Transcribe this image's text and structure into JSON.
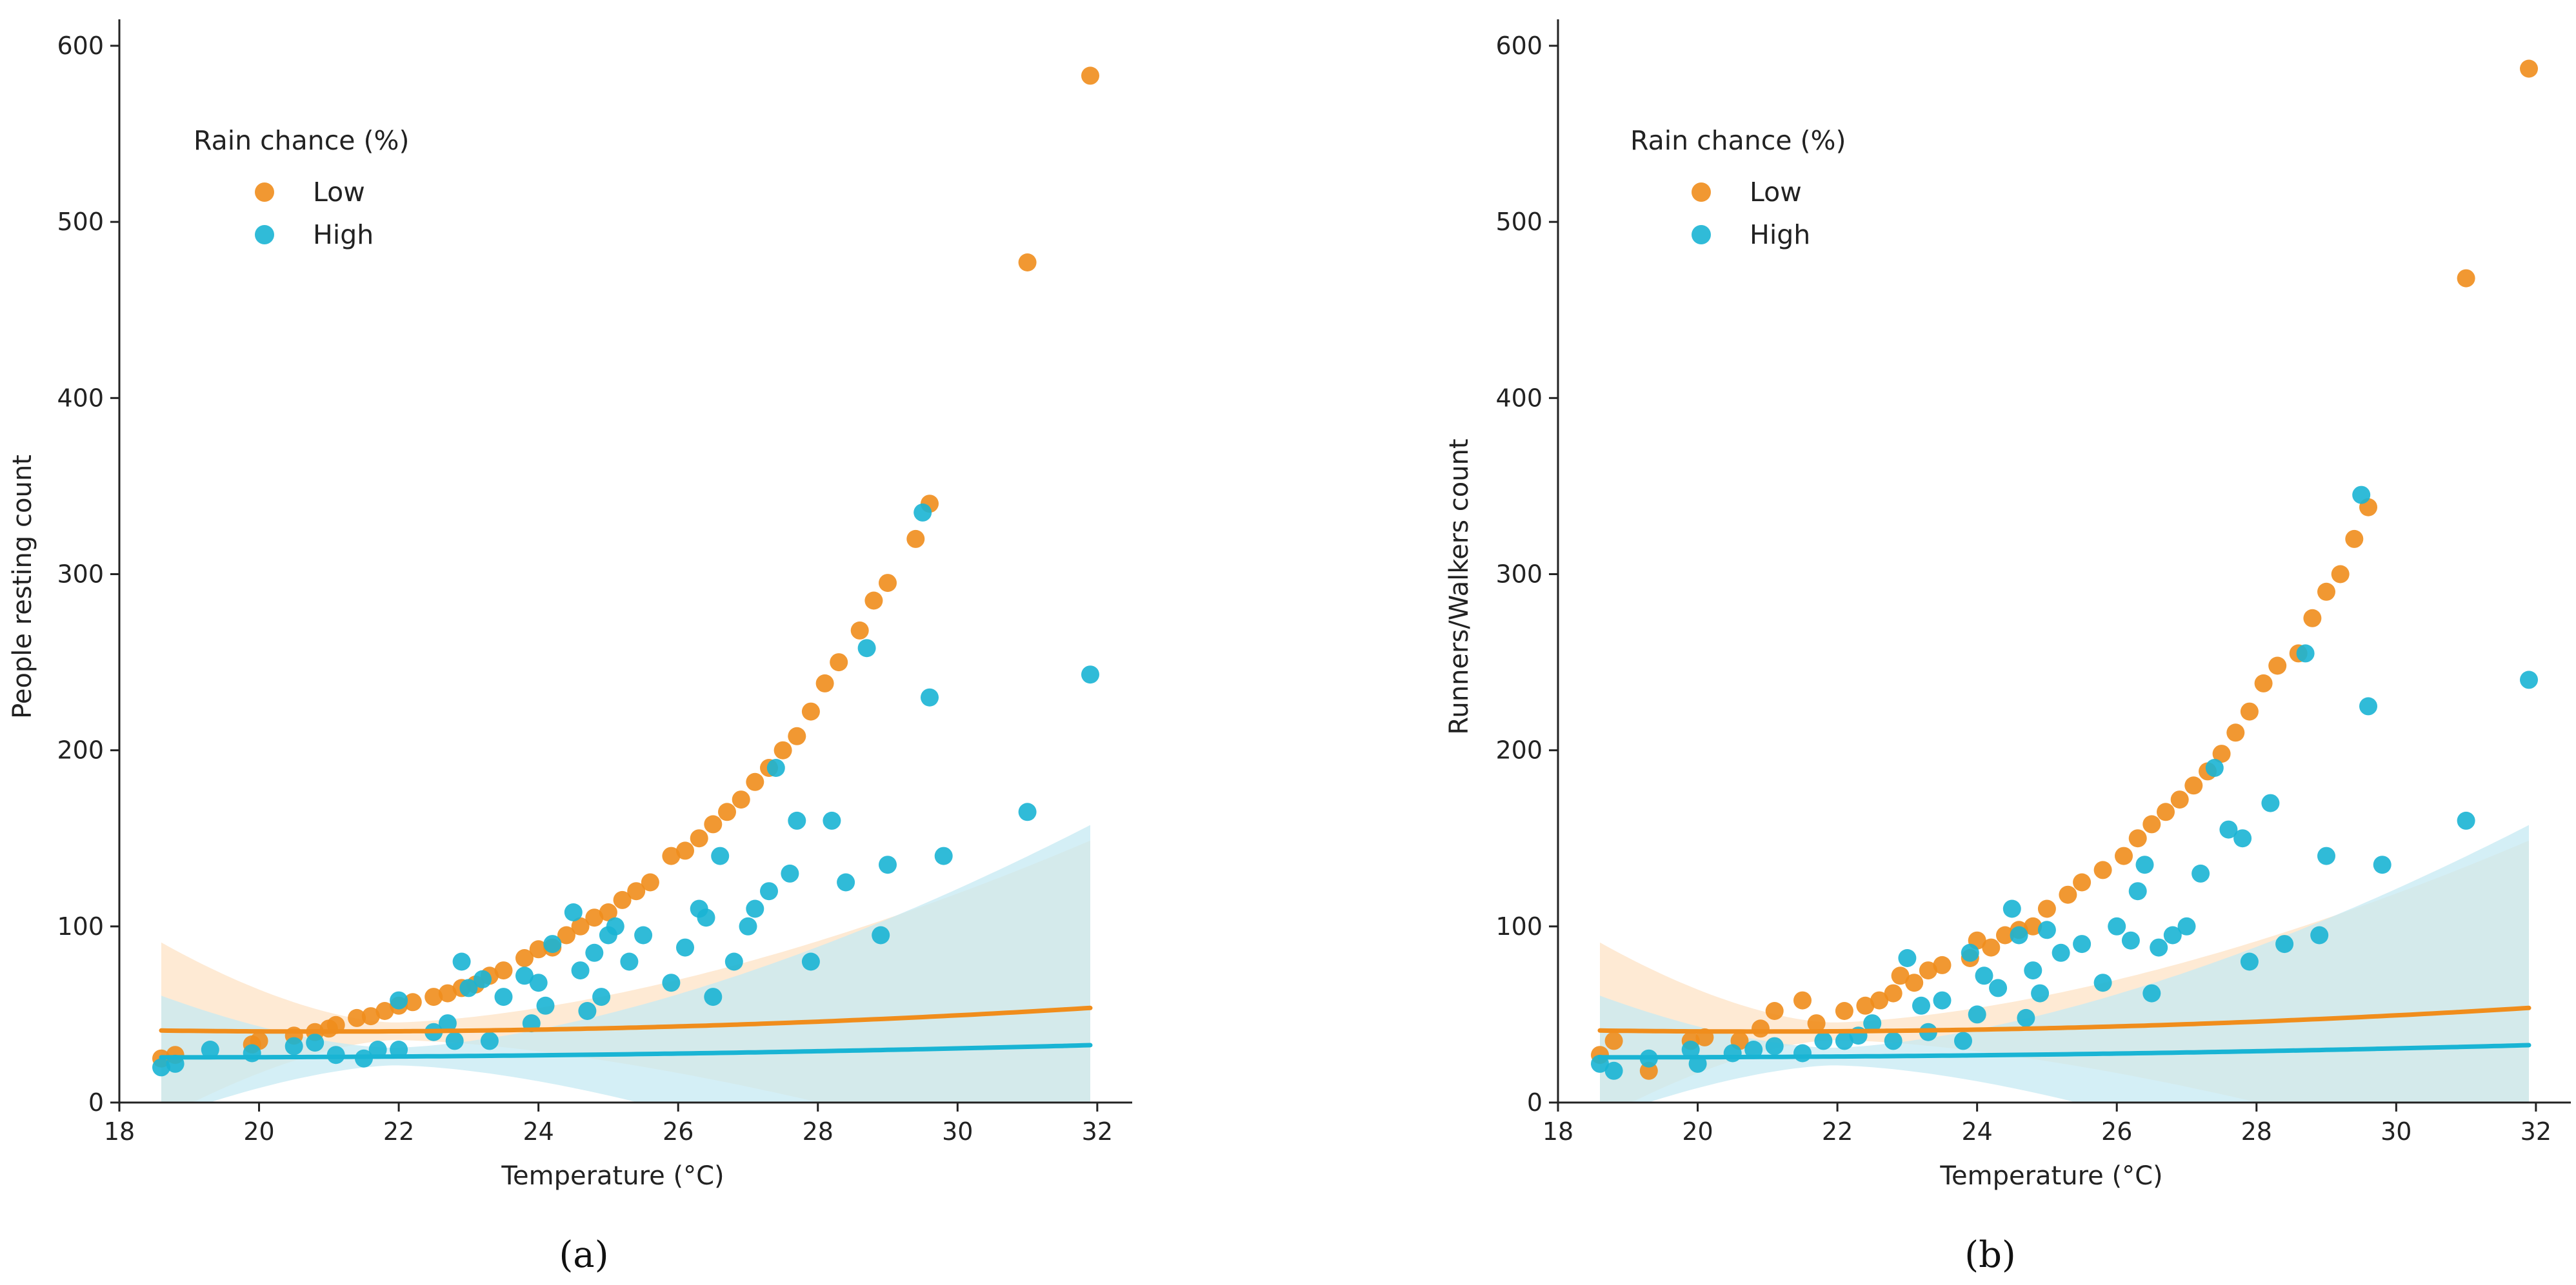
{
  "colors": {
    "low": "#f08d1c",
    "high": "#19b4d4",
    "low_band": "#fde3c6",
    "high_band": "#c6eaf3"
  },
  "chart_data": [
    {
      "type": "scatter",
      "panel_label": "(a)",
      "title": "",
      "xlabel": "Temperature (°C)",
      "ylabel": "People resting count",
      "xlim": [
        18,
        32.5
      ],
      "ylim": [
        0,
        615
      ],
      "xticks": [
        18,
        20,
        22,
        24,
        26,
        28,
        30,
        32
      ],
      "yticks": [
        0,
        100,
        200,
        300,
        400,
        500,
        600
      ],
      "legend": {
        "title": "Rain chance (%)",
        "position": "top-left"
      },
      "series": [
        {
          "name": "Low",
          "color_key": "low",
          "points": [
            [
              18.6,
              25
            ],
            [
              18.8,
              27
            ],
            [
              19.9,
              33
            ],
            [
              20.0,
              35
            ],
            [
              20.5,
              38
            ],
            [
              20.8,
              40
            ],
            [
              21.0,
              42
            ],
            [
              21.1,
              44
            ],
            [
              21.4,
              48
            ],
            [
              21.6,
              49
            ],
            [
              21.8,
              52
            ],
            [
              22.0,
              55
            ],
            [
              22.2,
              57
            ],
            [
              22.5,
              60
            ],
            [
              22.7,
              62
            ],
            [
              22.9,
              65
            ],
            [
              23.1,
              67
            ],
            [
              23.3,
              72
            ],
            [
              23.5,
              75
            ],
            [
              23.8,
              82
            ],
            [
              24.0,
              87
            ],
            [
              24.2,
              88
            ],
            [
              24.4,
              95
            ],
            [
              24.6,
              100
            ],
            [
              24.8,
              105
            ],
            [
              25.0,
              108
            ],
            [
              25.2,
              115
            ],
            [
              25.4,
              120
            ],
            [
              25.6,
              125
            ],
            [
              25.9,
              140
            ],
            [
              26.1,
              143
            ],
            [
              26.3,
              150
            ],
            [
              26.5,
              158
            ],
            [
              26.7,
              165
            ],
            [
              26.9,
              172
            ],
            [
              27.1,
              182
            ],
            [
              27.3,
              190
            ],
            [
              27.5,
              200
            ],
            [
              27.7,
              208
            ],
            [
              27.9,
              222
            ],
            [
              28.1,
              238
            ],
            [
              28.3,
              250
            ],
            [
              28.6,
              268
            ],
            [
              28.8,
              285
            ],
            [
              29.0,
              295
            ],
            [
              29.4,
              320
            ],
            [
              29.6,
              340
            ],
            [
              31.0,
              477
            ],
            [
              31.9,
              583
            ]
          ],
          "fit": {
            "a": 0.11,
            "b": -4.59,
            "c": 88.2
          },
          "ci_start": 45,
          "ci_end": 90
        },
        {
          "name": "High",
          "color_key": "high",
          "points": [
            [
              18.6,
              20
            ],
            [
              18.8,
              22
            ],
            [
              19.3,
              30
            ],
            [
              19.9,
              28
            ],
            [
              20.5,
              32
            ],
            [
              20.8,
              34
            ],
            [
              21.1,
              27
            ],
            [
              21.5,
              25
            ],
            [
              21.7,
              30
            ],
            [
              22.0,
              30
            ],
            [
              22.0,
              58
            ],
            [
              22.5,
              40
            ],
            [
              22.7,
              45
            ],
            [
              22.8,
              35
            ],
            [
              22.9,
              80
            ],
            [
              23.0,
              65
            ],
            [
              23.2,
              70
            ],
            [
              23.3,
              35
            ],
            [
              23.5,
              60
            ],
            [
              23.8,
              72
            ],
            [
              23.9,
              45
            ],
            [
              24.0,
              68
            ],
            [
              24.1,
              55
            ],
            [
              24.2,
              90
            ],
            [
              24.5,
              108
            ],
            [
              24.6,
              75
            ],
            [
              24.7,
              52
            ],
            [
              24.8,
              85
            ],
            [
              24.9,
              60
            ],
            [
              25.0,
              95
            ],
            [
              25.1,
              100
            ],
            [
              25.3,
              80
            ],
            [
              25.5,
              95
            ],
            [
              25.9,
              68
            ],
            [
              26.1,
              88
            ],
            [
              26.3,
              110
            ],
            [
              26.4,
              105
            ],
            [
              26.5,
              60
            ],
            [
              26.6,
              140
            ],
            [
              26.8,
              80
            ],
            [
              27.0,
              100
            ],
            [
              27.1,
              110
            ],
            [
              27.3,
              120
            ],
            [
              27.4,
              190
            ],
            [
              27.6,
              130
            ],
            [
              27.7,
              160
            ],
            [
              27.9,
              80
            ],
            [
              28.2,
              160
            ],
            [
              28.4,
              125
            ],
            [
              28.7,
              258
            ],
            [
              28.9,
              95
            ],
            [
              29.0,
              135
            ],
            [
              29.5,
              335
            ],
            [
              29.6,
              230
            ],
            [
              29.8,
              140
            ],
            [
              31.0,
              165
            ],
            [
              31.9,
              243
            ]
          ],
          "fit": {
            "a": 0.0386,
            "b": -1.43,
            "c": 38.9
          },
          "ci_start": 30,
          "ci_end": 120
        }
      ]
    },
    {
      "type": "scatter",
      "panel_label": "(b)",
      "title": "",
      "xlabel": "Temperature (°C)",
      "ylabel": "Runners/Walkers count",
      "xlim": [
        18,
        32.5
      ],
      "ylim": [
        0,
        615
      ],
      "xticks": [
        18,
        20,
        22,
        24,
        26,
        28,
        30,
        32
      ],
      "yticks": [
        0,
        100,
        200,
        300,
        400,
        500,
        600
      ],
      "legend": {
        "title": "Rain chance (%)",
        "position": "top-left"
      },
      "series": [
        {
          "name": "Low",
          "color_key": "low",
          "points": [
            [
              18.6,
              27
            ],
            [
              18.8,
              35
            ],
            [
              19.3,
              18
            ],
            [
              19.9,
              35
            ],
            [
              20.1,
              37
            ],
            [
              20.6,
              35
            ],
            [
              20.9,
              42
            ],
            [
              21.1,
              52
            ],
            [
              21.5,
              58
            ],
            [
              21.7,
              45
            ],
            [
              22.1,
              52
            ],
            [
              22.4,
              55
            ],
            [
              22.6,
              58
            ],
            [
              22.8,
              62
            ],
            [
              22.9,
              72
            ],
            [
              23.1,
              68
            ],
            [
              23.3,
              75
            ],
            [
              23.5,
              78
            ],
            [
              23.9,
              82
            ],
            [
              24.0,
              92
            ],
            [
              24.2,
              88
            ],
            [
              24.4,
              95
            ],
            [
              24.6,
              98
            ],
            [
              24.8,
              100
            ],
            [
              25.0,
              110
            ],
            [
              25.3,
              118
            ],
            [
              25.5,
              125
            ],
            [
              25.8,
              132
            ],
            [
              26.1,
              140
            ],
            [
              26.3,
              150
            ],
            [
              26.5,
              158
            ],
            [
              26.7,
              165
            ],
            [
              26.9,
              172
            ],
            [
              27.1,
              180
            ],
            [
              27.3,
              188
            ],
            [
              27.5,
              198
            ],
            [
              27.7,
              210
            ],
            [
              27.9,
              222
            ],
            [
              28.1,
              238
            ],
            [
              28.3,
              248
            ],
            [
              28.6,
              255
            ],
            [
              28.8,
              275
            ],
            [
              29.0,
              290
            ],
            [
              29.2,
              300
            ],
            [
              29.4,
              320
            ],
            [
              29.6,
              338
            ],
            [
              31.0,
              468
            ],
            [
              31.9,
              587
            ]
          ],
          "fit": {
            "a": 0.11,
            "b": -4.59,
            "c": 88.2
          },
          "ci_start": 45,
          "ci_end": 90
        },
        {
          "name": "High",
          "color_key": "high",
          "points": [
            [
              18.6,
              22
            ],
            [
              18.8,
              18
            ],
            [
              19.3,
              25
            ],
            [
              19.9,
              30
            ],
            [
              20.0,
              22
            ],
            [
              20.5,
              28
            ],
            [
              20.8,
              30
            ],
            [
              21.1,
              32
            ],
            [
              21.5,
              28
            ],
            [
              21.8,
              35
            ],
            [
              22.1,
              35
            ],
            [
              22.3,
              38
            ],
            [
              22.5,
              45
            ],
            [
              22.8,
              35
            ],
            [
              23.0,
              82
            ],
            [
              23.2,
              55
            ],
            [
              23.3,
              40
            ],
            [
              23.5,
              58
            ],
            [
              23.8,
              35
            ],
            [
              23.9,
              85
            ],
            [
              24.0,
              50
            ],
            [
              24.1,
              72
            ],
            [
              24.3,
              65
            ],
            [
              24.5,
              110
            ],
            [
              24.6,
              95
            ],
            [
              24.7,
              48
            ],
            [
              24.8,
              75
            ],
            [
              24.9,
              62
            ],
            [
              25.0,
              98
            ],
            [
              25.2,
              85
            ],
            [
              25.5,
              90
            ],
            [
              25.8,
              68
            ],
            [
              26.0,
              100
            ],
            [
              26.2,
              92
            ],
            [
              26.3,
              120
            ],
            [
              26.4,
              135
            ],
            [
              26.5,
              62
            ],
            [
              26.6,
              88
            ],
            [
              26.8,
              95
            ],
            [
              27.0,
              100
            ],
            [
              27.2,
              130
            ],
            [
              27.4,
              190
            ],
            [
              27.6,
              155
            ],
            [
              27.8,
              150
            ],
            [
              27.9,
              80
            ],
            [
              28.2,
              170
            ],
            [
              28.4,
              90
            ],
            [
              28.7,
              255
            ],
            [
              28.9,
              95
            ],
            [
              29.0,
              140
            ],
            [
              29.5,
              345
            ],
            [
              29.6,
              225
            ],
            [
              29.8,
              135
            ],
            [
              31.0,
              160
            ],
            [
              31.9,
              240
            ]
          ],
          "fit": {
            "a": 0.0386,
            "b": -1.43,
            "c": 38.9
          },
          "ci_start": 30,
          "ci_end": 120
        }
      ]
    }
  ]
}
